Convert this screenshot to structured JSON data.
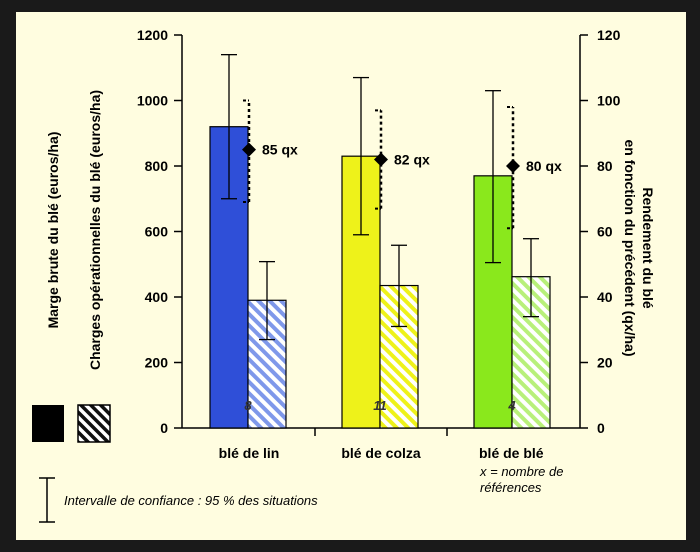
{
  "chart_data": {
    "type": "bar",
    "categories": [
      "blé de lin",
      "blé de colza",
      "blé de blé"
    ],
    "series": [
      {
        "values": [
          920,
          830,
          770
        ],
        "ci_low": [
          700,
          590,
          505
        ],
        "ci_high": [
          1140,
          1070,
          1030
        ],
        "colors": [
          "#2f4fd8",
          "#eef21a",
          "#8ae81c"
        ],
        "pattern": "solid"
      },
      {
        "values": [
          390,
          435,
          462
        ],
        "ci_low": [
          270,
          310,
          340
        ],
        "ci_high": [
          508,
          558,
          578
        ],
        "colors": [
          "#7f98ea",
          "#eef21a",
          "#b8f07a"
        ],
        "pattern": "hatched"
      }
    ],
    "yield": {
      "values": [
        85,
        82,
        80
      ],
      "labels": [
        "85 qx",
        "82 qx",
        "80 qx"
      ],
      "ci_low": [
        69,
        67,
        61
      ],
      "ci_high": [
        100,
        97,
        98
      ]
    },
    "counts": [
      "8",
      "11",
      "4"
    ],
    "left_axis": {
      "ylim": [
        0,
        1200
      ],
      "ticks": [
        "0",
        "200",
        "400",
        "600",
        "800",
        "1000",
        "1200"
      ],
      "label_1": "Marge brute du blé (euros/ha)",
      "label_2": "Charges opérationnelles du blé (euros/ha)"
    },
    "right_axis": {
      "ylim": [
        0,
        120
      ],
      "ticks": [
        "0",
        "20",
        "40",
        "60",
        "80",
        "100",
        "120"
      ],
      "label_1": "Rendement du blé",
      "label_2": "en fonction du précédent (qx/ha)"
    },
    "category_note_lines": [
      "x = nombre de",
      "références"
    ],
    "legend_note": "Intervalle de confiance : 95 % des situations"
  }
}
